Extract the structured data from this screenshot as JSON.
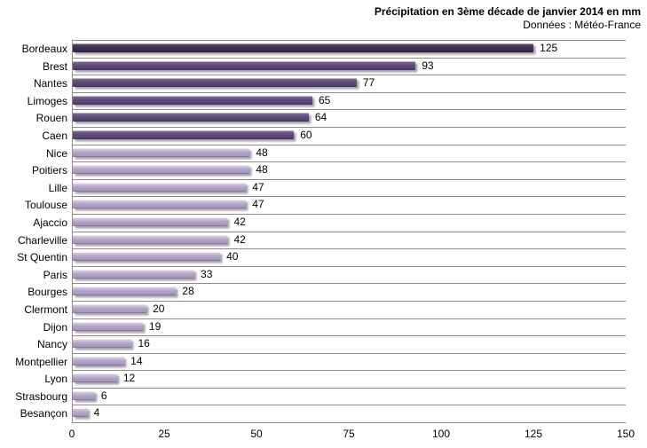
{
  "header": {
    "title": "Précipitation en 3ème décade de janvier 2014 en mm",
    "subtitle": "Données : Météo-France"
  },
  "colors": {
    "bar_dark": "#403152",
    "bar_medium": "#604A7B",
    "bar_light": "#B3A2C7",
    "gridline": "#8C8C8C",
    "text": "#000000",
    "background": "#FFFFFF"
  },
  "chart_data": {
    "type": "bar",
    "orientation": "horizontal",
    "title": "Précipitation en 3ème décade de janvier 2014 en mm",
    "subtitle": "Données : Météo-France",
    "xlabel": "",
    "ylabel": "",
    "xlim": [
      0,
      150
    ],
    "xticks": [
      0,
      25,
      50,
      75,
      100,
      125,
      150
    ],
    "grid": "horizontal-category-separators",
    "legend": "none",
    "value_labels": true,
    "categories": [
      "Bordeaux",
      "Brest",
      "Nantes",
      "Limoges",
      "Rouen",
      "Caen",
      "Nice",
      "Poitiers",
      "Lille",
      "Toulouse",
      "Ajaccio",
      "Charleville",
      "St Quentin",
      "Paris",
      "Bourges",
      "Clermont",
      "Dijon",
      "Nancy",
      "Montpellier",
      "Lyon",
      "Strasbourg",
      "Besançon"
    ],
    "values": [
      125,
      93,
      77,
      65,
      64,
      60,
      48,
      48,
      47,
      47,
      42,
      42,
      40,
      33,
      28,
      20,
      19,
      16,
      14,
      12,
      6,
      4
    ],
    "color_groups": [
      "dark",
      "medium",
      "medium",
      "medium",
      "medium",
      "medium",
      "light",
      "light",
      "light",
      "light",
      "light",
      "light",
      "light",
      "light",
      "light",
      "light",
      "light",
      "light",
      "light",
      "light",
      "light",
      "light"
    ]
  }
}
